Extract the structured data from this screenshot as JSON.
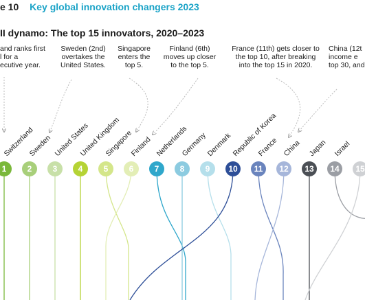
{
  "header": {
    "figure_number": "e 10",
    "figure_title": "Key global innovation changers 2023",
    "subtitle": "II dynamo: The top 15 innovators, 2020–2023"
  },
  "notes": [
    {
      "text": "and ranks first\nl for a\necutive year."
    },
    {
      "text": "Sweden (2nd)\novertakes the\nUnited States."
    },
    {
      "text": "Singapore\nenters the\ntop 5."
    },
    {
      "text": "Finland (6th)\nmoves up closer\nto the top 5."
    },
    {
      "text": "France (11th) gets closer to\nthe top 10, after breaking\ninto the top 15 in 2020."
    },
    {
      "text": "China (12t\nincome e\ntop 30, and"
    }
  ],
  "chart_data": {
    "type": "bump",
    "title": "II dynamo: The top 15 innovators, 2020–2023",
    "ranks": [
      {
        "rank": "1",
        "country": "Switzerland",
        "color": "#7ab83a"
      },
      {
        "rank": "2",
        "country": "Sweden",
        "color": "#a8cf7a"
      },
      {
        "rank": "3",
        "country": "United States",
        "color": "#c8e0a8"
      },
      {
        "rank": "4",
        "country": "United Kingdom",
        "color": "#b5d335"
      },
      {
        "rank": "5",
        "country": "Singapore",
        "color": "#d4e68a"
      },
      {
        "rank": "6",
        "country": "Finland",
        "color": "#e3eeb6"
      },
      {
        "rank": "7",
        "country": "Netherlands",
        "color": "#2fa7cb"
      },
      {
        "rank": "8",
        "country": "Germany",
        "color": "#8ccbe0"
      },
      {
        "rank": "9",
        "country": "Denmark",
        "color": "#b5dfeb"
      },
      {
        "rank": "10",
        "country": "Republic of Korea",
        "color": "#2e4f98"
      },
      {
        "rank": "11",
        "country": "France",
        "color": "#6a84bd"
      },
      {
        "rank": "12",
        "country": "China",
        "color": "#a6b6da"
      },
      {
        "rank": "13",
        "country": "Japan",
        "color": "#4b4f55"
      },
      {
        "rank": "14",
        "country": "Israel",
        "color": "#9b9ea4"
      },
      {
        "rank": "15",
        "country": "",
        "color": "#cfd1d4"
      }
    ]
  }
}
